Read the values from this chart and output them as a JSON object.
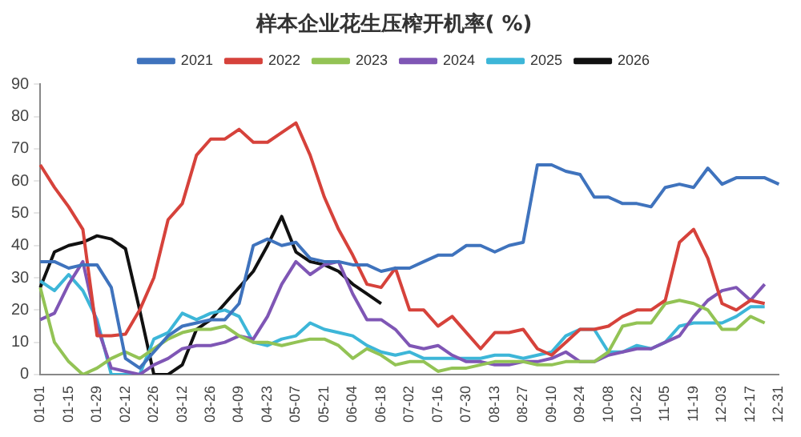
{
  "chart_data": {
    "type": "line",
    "title": "样本企业花生压榨开机率( %)",
    "categories": [
      "01-01",
      null,
      "01-15",
      null,
      "01-29",
      null,
      "02-12",
      null,
      "02-26",
      null,
      "03-12",
      null,
      "03-26",
      null,
      "04-09",
      null,
      "04-23",
      null,
      "05-07",
      null,
      "05-21",
      null,
      "06-04",
      null,
      "06-18",
      null,
      "07-02",
      null,
      "07-16",
      null,
      "07-30",
      null,
      "08-13",
      null,
      "08-27",
      null,
      "09-10",
      null,
      "09-24",
      null,
      "10-08",
      null,
      "10-22",
      null,
      "11-05",
      null,
      "11-19",
      null,
      "12-03",
      null,
      "12-17",
      null,
      "12-31"
    ],
    "series": [
      {
        "name": "2021",
        "color": "#3f73bd",
        "values": [
          35,
          35,
          33,
          34,
          34,
          27,
          5,
          2,
          7,
          12,
          15,
          16,
          17,
          17,
          22,
          40,
          42,
          40,
          41,
          36,
          35,
          35,
          34,
          34,
          32,
          33,
          33,
          35,
          37,
          37,
          40,
          40,
          38,
          40,
          41,
          65,
          65,
          63,
          62,
          55,
          55,
          53,
          53,
          52,
          58,
          59,
          58,
          64,
          59,
          61,
          61,
          61,
          59
        ]
      },
      {
        "name": "2022",
        "color": "#d6423b",
        "values": [
          65,
          58,
          52,
          45,
          12,
          12,
          12.5,
          20,
          30,
          48,
          53,
          68,
          73,
          73,
          76,
          72,
          72,
          75,
          78,
          68,
          55,
          45,
          37,
          28,
          27,
          33,
          20,
          20,
          15,
          18,
          13,
          8,
          13,
          13,
          14,
          8,
          6,
          10,
          14,
          14,
          15,
          18,
          20,
          20,
          23,
          41,
          45,
          36,
          22,
          20,
          23,
          22,
          null
        ]
      },
      {
        "name": "2023",
        "color": "#93c355",
        "values": [
          27,
          10,
          4,
          0,
          2,
          5,
          7,
          5,
          8,
          11,
          13,
          14,
          14,
          15,
          12,
          10,
          10,
          9,
          10,
          11,
          11,
          9,
          5,
          8,
          6,
          3,
          4,
          4,
          1,
          2,
          2,
          3,
          4,
          4,
          4,
          3,
          3,
          4,
          4,
          4,
          7,
          15,
          16,
          16,
          22,
          23,
          22,
          20,
          14,
          14,
          18,
          16,
          null
        ]
      },
      {
        "name": "2024",
        "color": "#7f56b5",
        "values": [
          17,
          19,
          28,
          35,
          15,
          2,
          1,
          0,
          3,
          5,
          8,
          9,
          9,
          10,
          12,
          11,
          18,
          28,
          35,
          31,
          34,
          35,
          25,
          17,
          17,
          14,
          9,
          8,
          9,
          6,
          4,
          4,
          3,
          3,
          4,
          4,
          5,
          7,
          4,
          4,
          6,
          7,
          8,
          8,
          10,
          12,
          18,
          23,
          26,
          27,
          23,
          28,
          null
        ]
      },
      {
        "name": "2025",
        "color": "#3db6d8",
        "values": [
          29,
          26,
          31,
          26,
          17,
          0,
          0,
          0,
          11,
          13,
          19,
          17,
          19,
          20,
          18,
          10,
          9,
          11,
          12,
          16,
          14,
          13,
          12,
          9,
          7,
          6,
          7,
          5,
          5,
          5,
          5,
          5,
          6,
          6,
          5,
          6,
          7,
          12,
          14,
          14,
          7,
          7,
          9,
          8,
          10,
          15,
          16,
          16,
          16,
          18,
          21,
          21,
          null
        ]
      },
      {
        "name": "2026",
        "color": "#111111",
        "values": [
          27,
          38,
          40,
          41,
          43,
          42,
          39,
          20,
          0,
          0,
          3,
          14,
          17,
          22,
          27,
          32,
          40,
          49,
          38,
          35,
          34,
          32,
          28,
          25,
          22,
          null,
          null,
          null,
          null,
          null,
          null,
          null,
          null,
          null,
          null,
          null,
          null,
          null,
          null,
          null,
          null,
          null,
          null,
          null,
          null,
          null,
          null,
          null,
          null,
          null,
          null,
          null,
          null
        ]
      }
    ],
    "ylim": [
      0,
      90
    ],
    "yticks": [
      0,
      10,
      20,
      30,
      40,
      50,
      60,
      70,
      80,
      90
    ],
    "grid": false,
    "legend": "top",
    "marker": "none",
    "line_style": "solid"
  }
}
